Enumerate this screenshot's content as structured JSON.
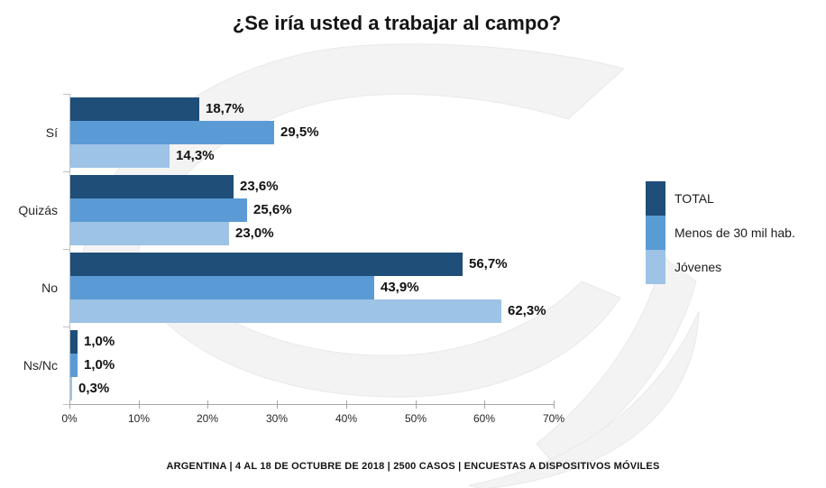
{
  "title": "¿Se iría usted a trabajar al campo?",
  "footer": "ARGENTINA | 4 AL 18 DE OCTUBRE DE 2018 | 2500 CASOS | ENCUESTAS A DISPOSITIVOS MÓVILES",
  "colors": {
    "series_total": "#1F4E79",
    "series_menos30": "#5B9BD5",
    "series_jovenes": "#9DC3E6",
    "axis_line": "#A6A6A6",
    "text": "#1A1A1A",
    "watermark": "#F3F3F3"
  },
  "chart_data": {
    "type": "bar",
    "orientation": "horizontal",
    "title": "¿Se iría usted a trabajar al campo?",
    "categories": [
      "Sí",
      "Quizás",
      "No",
      "Ns/Nc"
    ],
    "series": [
      {
        "name": "TOTAL",
        "color": "#1F4E79",
        "values": [
          18.7,
          23.6,
          56.7,
          1.0
        ],
        "labels": [
          "18,7%",
          "23,6%",
          "56,7%",
          "1,0%"
        ]
      },
      {
        "name": "Menos de 30 mil hab.",
        "color": "#5B9BD5",
        "values": [
          29.5,
          25.6,
          43.9,
          1.0
        ],
        "labels": [
          "29,5%",
          "25,6%",
          "43,9%",
          "1,0%"
        ]
      },
      {
        "name": "Jóvenes",
        "color": "#9DC3E6",
        "values": [
          14.3,
          23.0,
          62.3,
          0.3
        ],
        "labels": [
          "14,3%",
          "23,0%",
          "62,3%",
          "0,3%"
        ]
      }
    ],
    "x_axis": {
      "min": 0,
      "max": 70,
      "ticks": [
        "0%",
        "10%",
        "20%",
        "30%",
        "40%",
        "50%",
        "60%",
        "70%"
      ]
    },
    "legend": {
      "position": "right",
      "entries": [
        "TOTAL",
        "Menos de 30 mil hab.",
        "Jóvenes"
      ]
    },
    "grid": false,
    "data_labels": true
  }
}
